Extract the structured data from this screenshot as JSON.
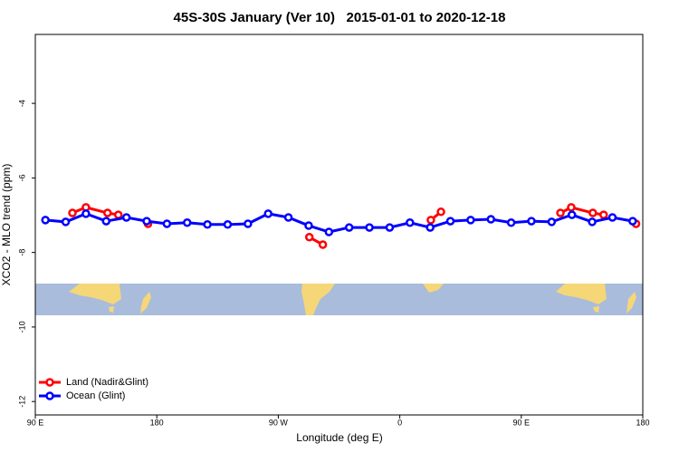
{
  "chart_data": {
    "type": "line",
    "title": "45S-30S January (Ver 10)   2015-01-01 to 2020-12-18",
    "xlabel": "Longitude (deg E)",
    "ylabel": "XCO2 - MLO trend (ppm)",
    "xlim": [
      90,
      540
    ],
    "ylim": [
      -12.36,
      -2.15
    ],
    "xticks": [
      {
        "value": 90,
        "label": "90 E"
      },
      180,
      {
        "value": 270,
        "label": "90 W"
      },
      {
        "value": 360,
        "label": "0"
      },
      {
        "value": 450,
        "label": "90 E"
      },
      {
        "value": 540,
        "label": "180"
      }
    ],
    "yticks": [
      -12,
      -10,
      -8,
      -6,
      -4
    ],
    "legend": "bottom-left",
    "series": [
      {
        "name": "Land (Nadir&Glint)",
        "color": "#ff0000",
        "x": [
          117.5,
          127.5,
          143.5,
          151.5,
          null,
          173.5,
          null,
          293,
          303,
          null,
          383,
          390.5,
          null,
          479,
          487,
          503,
          511,
          null,
          535
        ],
        "values": [
          -6.94,
          -6.79,
          -6.94,
          -6.99,
          null,
          -7.23,
          null,
          -7.59,
          -7.79,
          null,
          -7.13,
          -6.91,
          null,
          -6.94,
          -6.79,
          -6.94,
          -6.99,
          null,
          -7.23
        ]
      },
      {
        "name": "Ocean (Glint)",
        "color": "#0000ff",
        "x": [
          97.5,
          112.5,
          127.5,
          142.5,
          157.5,
          172.5,
          187.5,
          202.5,
          217.5,
          232.5,
          247.5,
          262.5,
          277.5,
          292.5,
          307.5,
          322.5,
          337.5,
          352.5,
          367.5,
          382.5,
          397.5,
          412.5,
          427.5,
          442.5,
          457.5,
          472.5,
          487.5,
          502.5,
          517.5,
          532.5
        ],
        "values": [
          -7.13,
          -7.18,
          -6.96,
          -7.16,
          -7.06,
          -7.16,
          -7.23,
          -7.2,
          -7.25,
          -7.25,
          -7.23,
          -6.96,
          -7.06,
          -7.28,
          -7.45,
          -7.33,
          -7.33,
          -7.33,
          -7.2,
          -7.33,
          -7.16,
          -7.13,
          -7.11,
          -7.2,
          -7.16,
          -7.18,
          -6.99,
          -7.18,
          -7.06,
          -7.16
        ]
      }
    ]
  }
}
